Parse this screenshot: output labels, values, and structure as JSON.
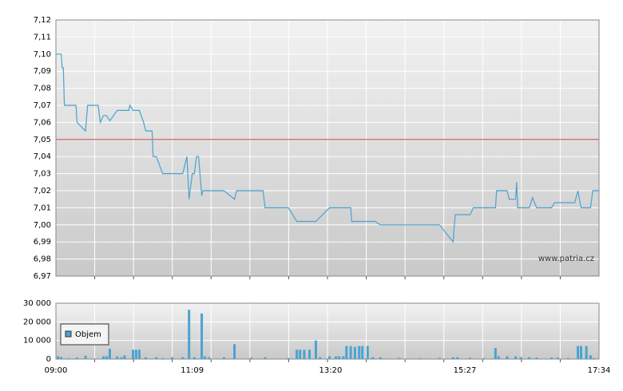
{
  "chart_data": [
    {
      "type": "line",
      "x": [
        "09:00",
        "09:05",
        "09:06",
        "09:07",
        "09:08",
        "09:19",
        "09:20",
        "09:28",
        "09:30",
        "09:40",
        "09:42",
        "09:45",
        "09:48",
        "09:51",
        "09:58",
        "10:09",
        "10:10",
        "10:13",
        "10:19",
        "10:23",
        "10:25",
        "10:31",
        "10:32",
        "10:35",
        "10:41",
        "11:00",
        "11:04",
        "11:06",
        "11:09",
        "11:11",
        "11:13",
        "11:15",
        "11:18",
        "11:19",
        "11:39",
        "11:49",
        "11:51",
        "12:16",
        "12:18",
        "12:40",
        "12:48",
        "13:06",
        "13:19",
        "13:39",
        "13:40",
        "14:02",
        "14:07",
        "15:03",
        "15:16",
        "15:17",
        "15:18",
        "15:32",
        "15:35",
        "15:56",
        "15:57",
        "16:07",
        "16:09",
        "16:15",
        "16:16",
        "16:17",
        "16:28",
        "16:31",
        "16:35",
        "16:49",
        "16:52",
        "17:11",
        "17:14",
        "17:17",
        "17:26",
        "17:28",
        "17:34"
      ],
      "values": [
        7.1,
        7.1,
        7.092,
        7.092,
        7.07,
        7.07,
        7.06,
        7.055,
        7.07,
        7.07,
        7.06,
        7.064,
        7.064,
        7.061,
        7.067,
        7.067,
        7.07,
        7.067,
        7.067,
        7.06,
        7.055,
        7.055,
        7.04,
        7.04,
        7.03,
        7.03,
        7.04,
        7.015,
        7.03,
        7.03,
        7.04,
        7.04,
        7.017,
        7.02,
        7.02,
        7.015,
        7.02,
        7.02,
        7.01,
        7.01,
        7.002,
        7.002,
        7.01,
        7.01,
        7.002,
        7.002,
        7.0,
        7.0,
        6.99,
        7.0,
        7.006,
        7.006,
        7.01,
        7.01,
        7.02,
        7.02,
        7.015,
        7.015,
        7.025,
        7.01,
        7.01,
        7.016,
        7.01,
        7.01,
        7.013,
        7.013,
        7.02,
        7.01,
        7.01,
        7.02,
        7.02
      ],
      "color": "#4aa3d0",
      "xlim": [
        "09:00",
        "17:34"
      ],
      "ylim": [
        6.97,
        7.12
      ],
      "yticks": [
        {
          "value": 6.97,
          "label": "6,97"
        },
        {
          "value": 6.98,
          "label": "6,98"
        },
        {
          "value": 6.99,
          "label": "6,99"
        },
        {
          "value": 7.0,
          "label": "7,00"
        },
        {
          "value": 7.01,
          "label": "7,01"
        },
        {
          "value": 7.02,
          "label": "7,02"
        },
        {
          "value": 7.03,
          "label": "7,03"
        },
        {
          "value": 7.04,
          "label": "7,04"
        },
        {
          "value": 7.05,
          "label": "7,05"
        },
        {
          "value": 7.06,
          "label": "7,06"
        },
        {
          "value": 7.07,
          "label": "7,07"
        },
        {
          "value": 7.08,
          "label": "7,08"
        },
        {
          "value": 7.09,
          "label": "7,09"
        },
        {
          "value": 7.1,
          "label": "7,10"
        },
        {
          "value": 7.11,
          "label": "7,11"
        },
        {
          "value": 7.12,
          "label": "7,12"
        }
      ],
      "reference_line": {
        "value": 7.05,
        "color": "#d04040"
      },
      "annotation": "www.patria.cz",
      "grid": true
    },
    {
      "type": "bar",
      "x": [
        "09:02",
        "09:05",
        "09:12",
        "09:20",
        "09:28",
        "09:45",
        "09:48",
        "09:51",
        "09:58",
        "10:02",
        "10:05",
        "10:13",
        "10:16",
        "10:19",
        "10:25",
        "10:35",
        "10:41",
        "10:50",
        "11:00",
        "11:06",
        "11:11",
        "11:18",
        "11:21",
        "11:25",
        "11:39",
        "11:49",
        "12:05",
        "12:18",
        "12:40",
        "12:48",
        "12:51",
        "12:55",
        "13:00",
        "13:06",
        "13:10",
        "13:19",
        "13:25",
        "13:28",
        "13:32",
        "13:35",
        "13:39",
        "13:43",
        "13:47",
        "13:50",
        "13:55",
        "14:00",
        "14:07",
        "14:25",
        "14:45",
        "15:03",
        "15:16",
        "15:20",
        "15:32",
        "15:45",
        "15:56",
        "15:59",
        "16:07",
        "16:15",
        "16:20",
        "16:28",
        "16:35",
        "16:49",
        "16:55",
        "17:05",
        "17:14",
        "17:17",
        "17:22",
        "17:26",
        "17:29"
      ],
      "series": [
        {
          "name": "Objem",
          "color": "#4aa3d0",
          "values": [
            1500,
            1000,
            500,
            800,
            1800,
            1500,
            1500,
            5500,
            1500,
            1000,
            2000,
            5000,
            5000,
            5000,
            1000,
            1000,
            500,
            1000,
            1000,
            26500,
            1000,
            24500,
            1500,
            1000,
            1000,
            8000,
            800,
            1000,
            600,
            5000,
            5000,
            5000,
            5000,
            10000,
            1000,
            1500,
            1500,
            1500,
            1500,
            7000,
            7000,
            6500,
            7000,
            7000,
            7000,
            1000,
            1000,
            600,
            500,
            600,
            1000,
            1000,
            600,
            500,
            6000,
            1500,
            1500,
            1500,
            1000,
            1000,
            800,
            800,
            800,
            500,
            7000,
            7000,
            7000,
            2000,
            500
          ]
        }
      ],
      "xlim": [
        "09:00",
        "17:34"
      ],
      "xticks": [
        "09:00",
        "11:09",
        "13:20",
        "15:27",
        "17:34"
      ],
      "ylim": [
        0,
        30000
      ],
      "yticks": [
        0,
        {
          "value": 10000,
          "label": "10 000"
        },
        {
          "value": 20000,
          "label": "20 000"
        },
        {
          "value": 30000,
          "label": "30 000"
        }
      ],
      "legend": "upper left",
      "grid": true
    }
  ]
}
